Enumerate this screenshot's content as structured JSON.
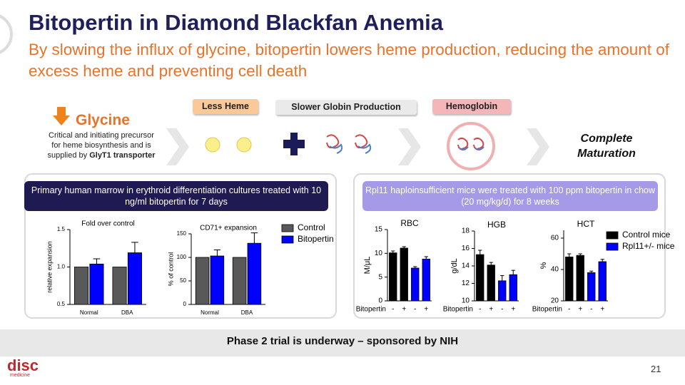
{
  "header": {
    "title": "Bitopertin in Diamond Blackfan Anemia",
    "subtitle": "By slowing the influx of glycine, bitopertin lowers heme production, reducing the amount of excess heme and preventing cell death"
  },
  "flow": {
    "glycine": "Glycine",
    "glycine_desc": "Critical and initiating precursor for heme biosynthesis and is supplied by ",
    "glycine_desc_bold": "GlyT1 transporter",
    "steps": [
      "Less Heme",
      "Slower Globin Production",
      "Hemoglobin"
    ],
    "end": "Complete Maturation"
  },
  "panels": {
    "left": "Primary human marrow in erythroid differentiation cultures treated with 10 ng/ml bitopertin for 7 days",
    "right": "Rpl11 haploinsufficient mice were treated with 100 ppm bitopertin in chow (20 mg/kg/d) for 8 weeks"
  },
  "footer": {
    "banner": "Phase 2 trial is underway – sponsored by NIH",
    "page": "21",
    "logo": "disc",
    "logo_sub": "medicine"
  },
  "chart_data": [
    {
      "type": "bar",
      "title": "Fold over control",
      "ylabel": "relative expansion",
      "categories": [
        "Normal",
        "DBA"
      ],
      "ylim": [
        0.5,
        1.5
      ],
      "yticks": [
        {
          "value": 0.5,
          "label": "0.5"
        },
        {
          "value": 1,
          "label": "1.0"
        },
        {
          "value": 1.5,
          "label": "1.5"
        }
      ],
      "series": [
        {
          "color": "#595959",
          "values": [
            1,
            1
          ]
        },
        {
          "color": "#0000ff",
          "values": [
            1.04,
            1.19
          ],
          "errors": [
            0.07,
            0.14
          ]
        }
      ]
    },
    {
      "type": "bar",
      "title": "CD71+ expansion",
      "ylabel": "% of control",
      "categories": [
        "Normal",
        "DBA"
      ],
      "ylim": [
        0,
        150
      ],
      "yticks": [
        0,
        50,
        100,
        150
      ],
      "series": [
        {
          "name": "Control",
          "color": "#595959",
          "values": [
            100,
            100
          ]
        },
        {
          "name": "Bitopertin",
          "color": "#0000ff",
          "values": [
            103,
            130
          ],
          "errors": [
            13,
            22
          ]
        }
      ]
    },
    {
      "type": "bar",
      "title": "RBC",
      "ylabel": "M/μL",
      "xlabel": "Bitopertin",
      "categories": [
        "-",
        "+",
        "-",
        "+"
      ],
      "ylim": [
        0,
        15
      ],
      "yticks": [
        0,
        5,
        10,
        15
      ],
      "series": [
        {
          "color": "#000000",
          "values": [
            10.1,
            11.1,
            null,
            null
          ],
          "errors": [
            0.4,
            0.3,
            null,
            null
          ]
        },
        {
          "color": "#0000ff",
          "values": [
            null,
            null,
            6.9,
            8.8
          ],
          "errors": [
            null,
            null,
            0.3,
            0.5
          ]
        }
      ]
    },
    {
      "type": "bar",
      "title": "HGB",
      "ylabel": "g/dL",
      "xlabel": "Bitopertin",
      "categories": [
        "-",
        "+",
        "-",
        "+"
      ],
      "ylim": [
        10,
        18
      ],
      "yticks": [
        10,
        12,
        14,
        16,
        18
      ],
      "series": [
        {
          "color": "#000000",
          "values": [
            15.3,
            14.1,
            null,
            null
          ],
          "errors": [
            0.5,
            0.3,
            null,
            null
          ]
        },
        {
          "color": "#0000ff",
          "values": [
            null,
            null,
            12.3,
            13
          ],
          "errors": [
            null,
            null,
            0.6,
            0.5
          ]
        }
      ]
    },
    {
      "type": "bar",
      "title": "HCT",
      "ylabel": "%",
      "xlabel": "Bitopertin",
      "categories": [
        "-",
        "+",
        "-",
        "+"
      ],
      "ylim": [
        20,
        65
      ],
      "yticks": [
        20,
        40,
        60
      ],
      "series": [
        {
          "name": "Control mice",
          "color": "#000000",
          "values": [
            48,
            49,
            null,
            null
          ],
          "errors": [
            2,
            1,
            null,
            null
          ]
        },
        {
          "name": "Rpl11+/- mice",
          "color": "#0000ff",
          "values": [
            null,
            null,
            38,
            45
          ],
          "errors": [
            null,
            null,
            1,
            1.5
          ]
        }
      ]
    }
  ]
}
